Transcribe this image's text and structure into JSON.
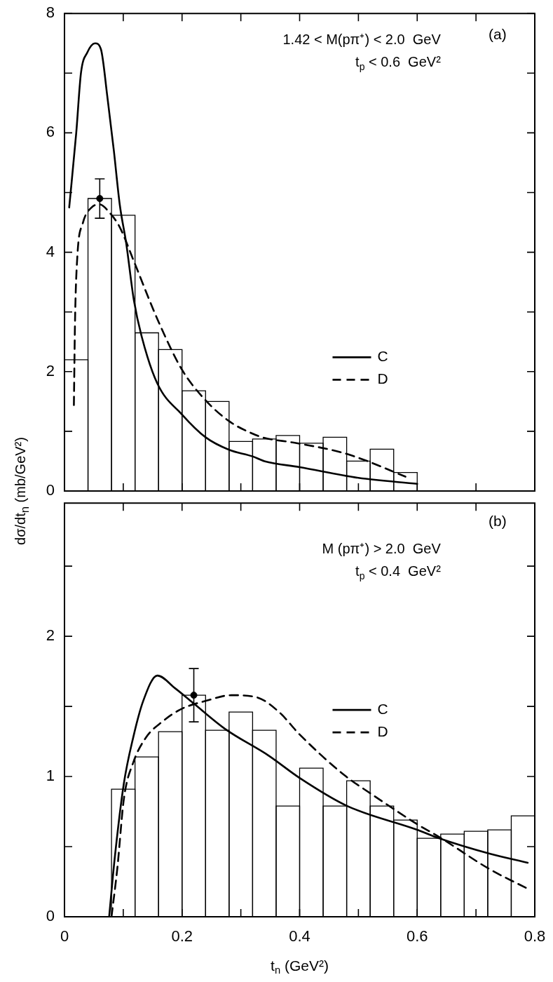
{
  "chart_data": [
    {
      "type": "histogram",
      "ylabel": "dσ/dt$_{n}$ (mb/GeV²)",
      "legend": "lower right",
      "tick_labels": "y",
      "annotations": [
        "(a)",
        "1.42 < M(pπ⁺) < 2.0  GeV",
        "t$_{p}$ < 0.6  GeV²"
      ],
      "xlim": [
        0,
        0.8
      ],
      "xticks": [
        {
          "value": 0,
          "label": null
        },
        {
          "value": 0.1,
          "label": null
        },
        {
          "value": 0.2,
          "label": null
        },
        {
          "value": 0.3,
          "label": null
        },
        {
          "value": 0.4,
          "label": null
        },
        {
          "value": 0.5,
          "label": null
        },
        {
          "value": 0.6,
          "label": null
        },
        {
          "value": 0.7,
          "label": null
        },
        {
          "value": 0.8,
          "label": null
        }
      ],
      "ylim": [
        0,
        8
      ],
      "yticks": [
        0,
        {
          "value": 1,
          "label": null
        },
        2,
        {
          "value": 3,
          "label": null
        },
        4,
        {
          "value": 5,
          "label": null
        },
        6,
        {
          "value": 7,
          "label": null
        },
        8
      ],
      "series": [
        {
          "type": "histogram",
          "color": "#000000",
          "bins": [
            0,
            0.04,
            0.08,
            0.12,
            0.16,
            0.2,
            0.24,
            0.28,
            0.32,
            0.36,
            0.4,
            0.44,
            0.48,
            0.52,
            0.56,
            0.6
          ],
          "values": [
            2.2,
            4.9,
            4.62,
            2.65,
            2.37,
            1.68,
            1.5,
            0.83,
            0.87,
            0.93,
            0.8,
            0.9,
            0.5,
            0.7,
            0.31
          ]
        },
        {
          "type": "line",
          "name": "C",
          "color": "#000000",
          "line_style": "solid",
          "x": [
            0.008,
            0.02,
            0.028,
            0.039,
            0.052,
            0.062,
            0.073,
            0.084,
            0.094,
            0.105,
            0.118,
            0.131,
            0.158,
            0.2,
            0.24,
            0.28,
            0.32,
            0.34,
            0.4,
            0.5,
            0.6
          ],
          "values": [
            4.75,
            6.0,
            7.0,
            7.35,
            7.5,
            7.4,
            6.6,
            5.7,
            4.8,
            4.15,
            3.2,
            2.6,
            1.8,
            1.28,
            0.9,
            0.69,
            0.58,
            0.5,
            0.4,
            0.22,
            0.12
          ]
        },
        {
          "type": "line",
          "name": "D",
          "color": "#000000",
          "line_style": "dashed",
          "x": [
            0.016,
            0.018,
            0.022,
            0.031,
            0.046,
            0.06,
            0.076,
            0.094,
            0.118,
            0.158,
            0.2,
            0.24,
            0.28,
            0.32,
            0.34,
            0.39,
            0.47,
            0.51,
            0.58
          ],
          "values": [
            1.44,
            2.88,
            3.95,
            4.48,
            4.75,
            4.8,
            4.67,
            4.42,
            3.85,
            2.88,
            2.03,
            1.52,
            1.17,
            0.96,
            0.89,
            0.81,
            0.65,
            0.52,
            0.24
          ]
        },
        {
          "type": "scatter",
          "color": "#000000",
          "marker": "circle",
          "x": [
            0.06
          ],
          "values": [
            4.9
          ],
          "errors": [
            0.33
          ]
        }
      ]
    },
    {
      "type": "histogram",
      "xlabel": "t$_{n}$ (GeV²)",
      "legend": "right",
      "annotations": [
        "(b)",
        "M (pπ⁺) > 2.0  GeV",
        "t$_{p}$ < 0.4  GeV²"
      ],
      "xlim": [
        0,
        0.8
      ],
      "xticks": [
        0,
        {
          "value": 0.1,
          "label": null
        },
        0.2,
        {
          "value": 0.3,
          "label": null
        },
        0.4,
        {
          "value": 0.5,
          "label": null
        },
        0.6,
        {
          "value": 0.7,
          "label": null
        },
        0.8
      ],
      "ylim": [
        0,
        2.95
      ],
      "yticks": [
        0,
        {
          "value": 0.5,
          "label": null
        },
        1,
        {
          "value": 1.5,
          "label": null
        },
        2,
        {
          "value": 2.5,
          "label": null
        }
      ],
      "series": [
        {
          "type": "histogram",
          "color": "#000000",
          "bins": [
            0.08,
            0.12,
            0.16,
            0.2,
            0.24,
            0.28,
            0.32,
            0.36,
            0.4,
            0.44,
            0.48,
            0.52,
            0.56,
            0.6,
            0.64,
            0.68,
            0.72,
            0.76,
            0.8
          ],
          "values": [
            0.91,
            1.14,
            1.32,
            1.58,
            1.33,
            1.46,
            1.33,
            0.79,
            1.06,
            0.79,
            0.97,
            0.79,
            0.69,
            0.56,
            0.59,
            0.61,
            0.62,
            0.72
          ]
        },
        {
          "type": "line",
          "name": "C",
          "color": "#000000",
          "line_style": "solid",
          "x": [
            0.076,
            0.085,
            0.101,
            0.117,
            0.134,
            0.158,
            0.188,
            0.22,
            0.273,
            0.347,
            0.4,
            0.481,
            0.6,
            0.637,
            0.723,
            0.788
          ],
          "values": [
            0,
            0.4,
            0.95,
            1.28,
            1.54,
            1.72,
            1.63,
            1.52,
            1.34,
            1.15,
            0.99,
            0.79,
            0.62,
            0.56,
            0.45,
            0.385
          ]
        },
        {
          "type": "line",
          "name": "D",
          "color": "#000000",
          "line_style": "dashed",
          "x": [
            0.08,
            0.09,
            0.101,
            0.117,
            0.139,
            0.166,
            0.198,
            0.241,
            0.284,
            0.327,
            0.365,
            0.4,
            0.476,
            0.524,
            0.6,
            0.637,
            0.723,
            0.788
          ],
          "values": [
            0,
            0.35,
            0.84,
            1.1,
            1.28,
            1.39,
            1.48,
            1.54,
            1.58,
            1.565,
            1.46,
            1.3,
            1.01,
            0.87,
            0.66,
            0.57,
            0.34,
            0.2
          ]
        },
        {
          "type": "scatter",
          "color": "#000000",
          "marker": "circle",
          "x": [
            0.22
          ],
          "values": [
            1.58
          ],
          "errors": [
            0.19
          ]
        }
      ]
    }
  ]
}
